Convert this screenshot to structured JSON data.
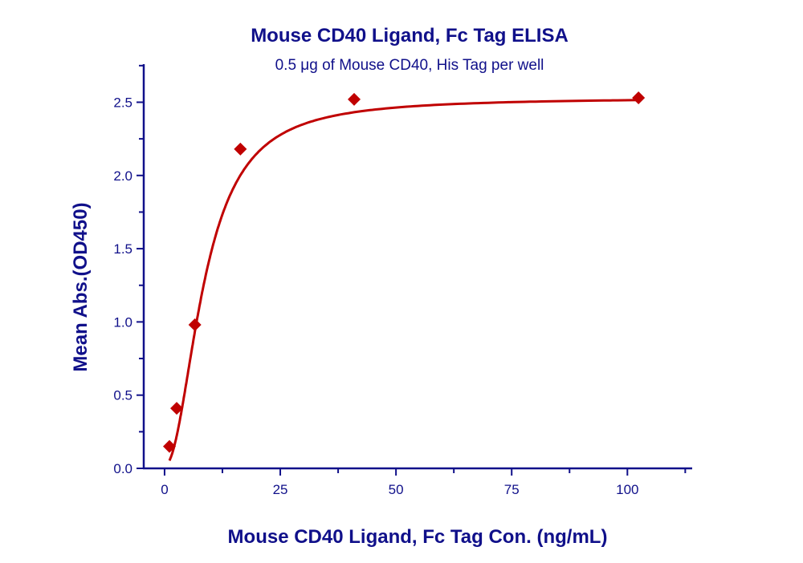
{
  "chart_data": {
    "type": "scatter",
    "title": "Mouse CD40 Ligand, Fc Tag ELISA",
    "subtitle": "0.5 μg of Mouse CD40, His Tag per well",
    "xlabel": "Mouse CD40 Ligand, Fc Tag Con. (ng/mL)",
    "ylabel": "Mean Abs.(OD450)",
    "xlim": [
      -4.5,
      114
    ],
    "ylim": [
      0,
      2.76
    ],
    "xticks": [
      "0",
      "25",
      "50",
      "75",
      "100"
    ],
    "yticks": [
      "0.0",
      "0.5",
      "1.0",
      "1.5",
      "2.0",
      "2.5"
    ],
    "grid": false,
    "x": [
      1.05,
      2.62,
      6.55,
      16.38,
      40.96,
      102.4
    ],
    "y": [
      0.15,
      0.41,
      0.98,
      2.18,
      2.52,
      2.53
    ],
    "fit_line": true,
    "colors": {
      "points": "#c00000",
      "line": "#c00000",
      "axes": "#10108a",
      "text": "#10108a"
    }
  }
}
